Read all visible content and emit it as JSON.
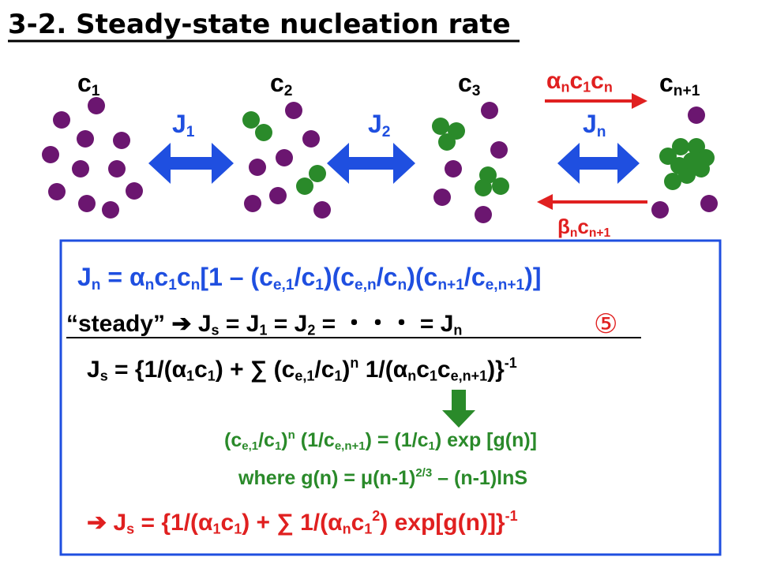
{
  "title": "3-2. Steady-state nucleation rate",
  "diagram": {
    "concentrations": [
      [
        "c",
        {
          "sub": "1"
        }
      ],
      [
        "c",
        {
          "sub": "2"
        }
      ],
      [
        "c",
        {
          "sub": "3"
        }
      ],
      [
        "c",
        {
          "sub": "n+1"
        }
      ]
    ],
    "fluxes": [
      [
        "J",
        {
          "sub": "1"
        }
      ],
      [
        "J",
        {
          "sub": "2"
        }
      ],
      [
        "J",
        {
          "sub": "n"
        }
      ]
    ],
    "forward_rate": [
      "α",
      {
        "sub": "n"
      },
      "c",
      {
        "sub": "1"
      },
      "c",
      {
        "sub": "n"
      }
    ],
    "backward_rate": [
      "β",
      {
        "sub": "n"
      },
      "c",
      {
        "sub": "n+1"
      }
    ]
  },
  "equations": [
    [
      "J",
      {
        "sub": "n"
      },
      " = α",
      {
        "sub": "n"
      },
      "c",
      {
        "sub": "1"
      },
      "c",
      {
        "sub": "n"
      },
      "[1 – (c",
      {
        "sub": "e,1"
      },
      "/c",
      {
        "sub": "1"
      },
      ")(c",
      {
        "sub": "e,n"
      },
      "/c",
      {
        "sub": "n"
      },
      ")(c",
      {
        "sub": "n+1"
      },
      "/c",
      {
        "sub": "e,n+1"
      },
      ")]"
    ],
    [
      "“steady” ➔ J",
      {
        "sub": "s"
      },
      " = J",
      {
        "sub": "1"
      },
      " = J",
      {
        "sub": "2"
      },
      " = ・・・ = J",
      {
        "sub": "n"
      }
    ],
    [
      "J",
      {
        "sub": "s"
      },
      " = {1/(α",
      {
        "sub": "1"
      },
      "c",
      {
        "sub": "1"
      },
      ") + ∑ (c",
      {
        "sub": "e,1"
      },
      "/c",
      {
        "sub": "1"
      },
      ")",
      {
        "sup": "n"
      },
      " 1/(α",
      {
        "sub": "n"
      },
      "c",
      {
        "sub": "1"
      },
      "c",
      {
        "sub": "e,n+1"
      },
      ")}",
      {
        "sup": "-1"
      }
    ],
    [
      "(c",
      {
        "sub": "e,1"
      },
      "/c",
      {
        "sub": "1"
      },
      ")",
      {
        "sup": "n"
      },
      " (1/c",
      {
        "sub": "e,n+1"
      },
      ") = (1/c",
      {
        "sub": "1"
      },
      ") exp [g(n)]"
    ],
    [
      "where g(n) = μ(n-1)",
      {
        "sup": "2/3"
      },
      " – (n-1)lnS"
    ],
    [
      "➔ J",
      {
        "sub": "s"
      },
      " = {1/(α",
      {
        "sub": "1"
      },
      "c",
      {
        "sub": "1"
      },
      ") + ∑ 1/(α",
      {
        "sub": "n"
      },
      "c",
      {
        "sub": "1"
      },
      {
        "sup": "2"
      },
      ") exp[g(n)]}",
      {
        "sup": "-1"
      }
    ]
  ],
  "marker": "⑤"
}
